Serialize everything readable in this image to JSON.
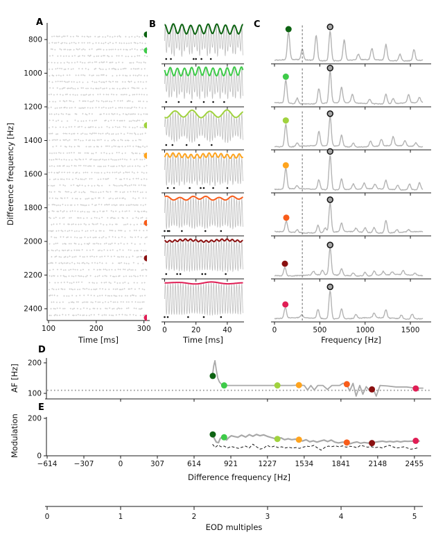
{
  "panels": {
    "a": "A",
    "b": "B",
    "c": "C",
    "d": "D",
    "e": "E"
  },
  "colors": {
    "highlights": [
      "#0d6312",
      "#3ecb49",
      "#a0d23e",
      "#ffa41e",
      "#f85c1a",
      "#8a1010",
      "#e01e55"
    ],
    "gray_line": "#a8a8a8",
    "trace_gray": "#bdbdbd",
    "spectrum_gray": "#b3b3b3",
    "raster_gray": "#c9c9c9",
    "eod_dot_fill": "#a6a6a6",
    "dotted_ref": "#909090",
    "dashed_black": "#151515",
    "axis": "#1a1a1a"
  },
  "chart_data": [
    {
      "id": "A",
      "type": "scatter",
      "xlabel": "Time [ms]",
      "ylabel": "Difference frequency [Hz]",
      "xticks": [
        100,
        200,
        300
      ],
      "yticks": [
        800,
        1000,
        1200,
        1400,
        1600,
        1800,
        2000,
        2200,
        2400
      ],
      "xlim": [
        97,
        312
      ],
      "ylim_inverted": [
        700,
        2470
      ],
      "raster": {
        "row_start": 782,
        "row_step": 38.5,
        "row_count": 44,
        "x_start": 100,
        "x_end": 307
      },
      "highlight_frequencies": [
        770,
        865,
        1310,
        1490,
        1890,
        2100,
        2465
      ]
    },
    {
      "id": "B",
      "type": "line",
      "xlabel": "Time [ms]",
      "xticks": [
        0,
        20,
        40
      ],
      "xlim": [
        0,
        50
      ],
      "carrier_hz": 614,
      "rows": [
        {
          "df": 770,
          "envelope_hz": 180,
          "depth": 0.3,
          "spikes": [
            1,
            4,
            18.5,
            20,
            23.5,
            29.5
          ]
        },
        {
          "df": 865,
          "envelope_hz": 220,
          "depth": 0.26,
          "spikes": [
            1,
            9,
            17,
            25,
            31,
            38
          ]
        },
        {
          "df": 1310,
          "envelope_hz": 90,
          "depth": 0.22,
          "spikes": [
            1,
            5,
            14,
            22,
            30
          ]
        },
        {
          "df": 1490,
          "envelope_hz": 260,
          "depth": 0.13,
          "spikes": [
            2,
            6,
            16,
            23,
            25,
            31,
            40
          ]
        },
        {
          "df": 1890,
          "envelope_hz": 120,
          "depth": 0.1,
          "spikes": [
            0,
            2,
            3,
            11,
            26,
            36
          ]
        },
        {
          "df": 2100,
          "envelope_hz": 300,
          "depth": 0.06,
          "spikes": [
            1,
            8,
            10,
            24,
            26,
            39
          ]
        },
        {
          "df": 2465,
          "envelope_hz": 60,
          "depth": 0.02,
          "spikes": [
            0,
            2,
            15,
            25,
            36
          ]
        }
      ]
    },
    {
      "id": "C",
      "type": "line",
      "xlabel": "Frequency [Hz]",
      "xticks": [
        0,
        500,
        1000,
        1500
      ],
      "xlim": [
        0,
        1640
      ],
      "dashed_vline_hz": 307,
      "eod_peak_hz": 614,
      "rows": [
        {
          "af_hz": 155,
          "peaks": [
            [
              155,
              0.74
            ],
            [
              307,
              0.28
            ],
            [
              460,
              0.68
            ],
            [
              614,
              0.8
            ],
            [
              770,
              0.55
            ],
            [
              925,
              0.15
            ],
            [
              1075,
              0.3
            ],
            [
              1230,
              0.42
            ],
            [
              1385,
              0.18
            ],
            [
              1540,
              0.3
            ]
          ]
        },
        {
          "af_hz": 125,
          "peaks": [
            [
              125,
              0.62
            ],
            [
              250,
              0.15
            ],
            [
              490,
              0.4
            ],
            [
              614,
              0.85
            ],
            [
              740,
              0.42
            ],
            [
              860,
              0.22
            ],
            [
              1050,
              0.12
            ],
            [
              1230,
              0.26
            ],
            [
              1310,
              0.14
            ],
            [
              1480,
              0.22
            ],
            [
              1600,
              0.14
            ]
          ]
        },
        {
          "af_hz": 125,
          "peaks": [
            [
              125,
              0.6
            ],
            [
              250,
              0.1
            ],
            [
              490,
              0.38
            ],
            [
              614,
              0.78
            ],
            [
              740,
              0.3
            ],
            [
              870,
              0.1
            ],
            [
              1060,
              0.14
            ],
            [
              1180,
              0.18
            ],
            [
              1310,
              0.24
            ],
            [
              1440,
              0.14
            ],
            [
              1560,
              0.1
            ]
          ]
        },
        {
          "af_hz": 125,
          "peaks": [
            [
              125,
              0.55
            ],
            [
              250,
              0.08
            ],
            [
              490,
              0.26
            ],
            [
              614,
              0.92
            ],
            [
              740,
              0.3
            ],
            [
              870,
              0.14
            ],
            [
              990,
              0.15
            ],
            [
              1110,
              0.12
            ],
            [
              1230,
              0.24
            ],
            [
              1360,
              0.12
            ],
            [
              1490,
              0.16
            ],
            [
              1600,
              0.18
            ]
          ]
        },
        {
          "af_hz": 130,
          "peaks": [
            [
              130,
              0.3
            ],
            [
              250,
              0.08
            ],
            [
              480,
              0.2
            ],
            [
              560,
              0.12
            ],
            [
              614,
              0.78
            ],
            [
              740,
              0.24
            ],
            [
              900,
              0.1
            ],
            [
              1000,
              0.12
            ],
            [
              1100,
              0.14
            ],
            [
              1230,
              0.34
            ],
            [
              1350,
              0.08
            ],
            [
              1480,
              0.06
            ]
          ]
        },
        {
          "af_hz": 115,
          "peaks": [
            [
              115,
              0.22
            ],
            [
              430,
              0.1
            ],
            [
              530,
              0.12
            ],
            [
              614,
              0.72
            ],
            [
              740,
              0.18
            ],
            [
              870,
              0.08
            ],
            [
              1000,
              0.1
            ],
            [
              1100,
              0.12
            ],
            [
              1200,
              0.1
            ],
            [
              1300,
              0.08
            ],
            [
              1420,
              0.12
            ],
            [
              1550,
              0.06
            ]
          ]
        },
        {
          "af_hz": 120,
          "peaks": [
            [
              120,
              0.28
            ],
            [
              300,
              0.08
            ],
            [
              480,
              0.24
            ],
            [
              614,
              0.75
            ],
            [
              740,
              0.28
            ],
            [
              900,
              0.1
            ],
            [
              1100,
              0.12
            ],
            [
              1230,
              0.22
            ],
            [
              1400,
              0.1
            ],
            [
              1520,
              0.13
            ]
          ]
        }
      ]
    },
    {
      "id": "D",
      "type": "line",
      "ylabel": "AF [Hz]",
      "yticks": [
        100,
        200
      ],
      "xticks": [
        0,
        614,
        1227,
        1841,
        2455
      ],
      "xlim": [
        -614,
        2590
      ],
      "ylim": [
        85,
        215
      ],
      "dotted_hline": 110,
      "line": [
        [
          768,
          160
        ],
        [
          778,
          190
        ],
        [
          788,
          207
        ],
        [
          800,
          176
        ],
        [
          812,
          150
        ],
        [
          826,
          137
        ],
        [
          845,
          129
        ],
        [
          865,
          126
        ],
        [
          1000,
          126
        ],
        [
          1150,
          126
        ],
        [
          1310,
          126
        ],
        [
          1430,
          126
        ],
        [
          1490,
          127
        ],
        [
          1535,
          126
        ],
        [
          1562,
          111
        ],
        [
          1590,
          126
        ],
        [
          1618,
          111
        ],
        [
          1648,
          126
        ],
        [
          1690,
          126
        ],
        [
          1728,
          113
        ],
        [
          1766,
          126
        ],
        [
          1830,
          126
        ],
        [
          1858,
          133
        ],
        [
          1888,
          130
        ],
        [
          1914,
          108
        ],
        [
          1942,
          133
        ],
        [
          1968,
          91
        ],
        [
          1998,
          126
        ],
        [
          2024,
          97
        ],
        [
          2052,
          122
        ],
        [
          2082,
          108
        ],
        [
          2106,
          119
        ],
        [
          2136,
          91
        ],
        [
          2168,
          126
        ],
        [
          2230,
          124
        ],
        [
          2300,
          121
        ],
        [
          2390,
          121
        ],
        [
          2466,
          117
        ],
        [
          2530,
          117
        ]
      ],
      "dots": [
        [
          770,
          157
        ],
        [
          865,
          126
        ],
        [
          1310,
          126
        ],
        [
          1490,
          127
        ],
        [
          1890,
          130
        ],
        [
          2100,
          113
        ],
        [
          2466,
          116
        ]
      ]
    },
    {
      "id": "E",
      "type": "line",
      "ylabel": "Modulation",
      "xlabel": "Difference frequency [Hz]",
      "yticks": [
        0,
        200
      ],
      "ylim": [
        0,
        230
      ],
      "xtick_values": [
        -614,
        -307,
        0,
        307,
        614,
        921,
        1227,
        1534,
        1841,
        2148,
        2455
      ],
      "xtick_labels": [
        "−614",
        "−307",
        "0",
        "307",
        "614",
        "921",
        "1227",
        "1534",
        "1841",
        "2148",
        "2455"
      ],
      "solid_line": [
        [
          768,
          114
        ],
        [
          785,
          90
        ],
        [
          800,
          73
        ],
        [
          818,
          70
        ],
        [
          832,
          92
        ],
        [
          848,
          101
        ],
        [
          865,
          99
        ],
        [
          885,
          84
        ],
        [
          905,
          98
        ],
        [
          925,
          107
        ],
        [
          950,
          103
        ],
        [
          980,
          99
        ],
        [
          1010,
          110
        ],
        [
          1045,
          100
        ],
        [
          1075,
          113
        ],
        [
          1105,
          104
        ],
        [
          1135,
          114
        ],
        [
          1165,
          107
        ],
        [
          1195,
          112
        ],
        [
          1225,
          104
        ],
        [
          1255,
          98
        ],
        [
          1285,
          93
        ],
        [
          1310,
          90
        ],
        [
          1340,
          96
        ],
        [
          1370,
          86
        ],
        [
          1400,
          91
        ],
        [
          1430,
          86
        ],
        [
          1460,
          89
        ],
        [
          1490,
          86
        ],
        [
          1520,
          79
        ],
        [
          1550,
          86
        ],
        [
          1580,
          75
        ],
        [
          1610,
          80
        ],
        [
          1640,
          73
        ],
        [
          1670,
          79
        ],
        [
          1700,
          84
        ],
        [
          1730,
          76
        ],
        [
          1760,
          84
        ],
        [
          1790,
          73
        ],
        [
          1820,
          69
        ],
        [
          1855,
          73
        ],
        [
          1890,
          71
        ],
        [
          1915,
          64
        ],
        [
          1945,
          70
        ],
        [
          1975,
          74
        ],
        [
          2005,
          67
        ],
        [
          2035,
          71
        ],
        [
          2065,
          68
        ],
        [
          2100,
          68
        ],
        [
          2130,
          73
        ],
        [
          2160,
          76
        ],
        [
          2190,
          78
        ],
        [
          2220,
          74
        ],
        [
          2250,
          77
        ],
        [
          2280,
          74
        ],
        [
          2310,
          78
        ],
        [
          2340,
          74
        ],
        [
          2370,
          78
        ],
        [
          2400,
          77
        ],
        [
          2435,
          78
        ],
        [
          2466,
          80
        ],
        [
          2500,
          78
        ]
      ],
      "dashed_line": [
        [
          768,
          62
        ],
        [
          790,
          45
        ],
        [
          815,
          57
        ],
        [
          840,
          48
        ],
        [
          865,
          52
        ],
        [
          895,
          42
        ],
        [
          925,
          50
        ],
        [
          955,
          44
        ],
        [
          985,
          40
        ],
        [
          1015,
          46
        ],
        [
          1045,
          52
        ],
        [
          1075,
          42
        ],
        [
          1105,
          62
        ],
        [
          1135,
          48
        ],
        [
          1165,
          36
        ],
        [
          1195,
          40
        ],
        [
          1225,
          56
        ],
        [
          1255,
          46
        ],
        [
          1285,
          52
        ],
        [
          1315,
          44
        ],
        [
          1345,
          48
        ],
        [
          1375,
          42
        ],
        [
          1405,
          46
        ],
        [
          1435,
          41
        ],
        [
          1465,
          44
        ],
        [
          1495,
          40
        ],
        [
          1525,
          46
        ],
        [
          1555,
          52
        ],
        [
          1585,
          49
        ],
        [
          1615,
          56
        ],
        [
          1645,
          42
        ],
        [
          1675,
          30
        ],
        [
          1705,
          44
        ],
        [
          1735,
          52
        ],
        [
          1765,
          49
        ],
        [
          1795,
          53
        ],
        [
          1825,
          48
        ],
        [
          1855,
          53
        ],
        [
          1885,
          46
        ],
        [
          1915,
          51
        ],
        [
          1945,
          49
        ],
        [
          1975,
          43
        ],
        [
          2005,
          56
        ],
        [
          2035,
          51
        ],
        [
          2065,
          46
        ],
        [
          2095,
          49
        ],
        [
          2125,
          43
        ],
        [
          2155,
          47
        ],
        [
          2185,
          42
        ],
        [
          2215,
          50
        ],
        [
          2245,
          56
        ],
        [
          2275,
          48
        ],
        [
          2305,
          41
        ],
        [
          2335,
          44
        ],
        [
          2365,
          48
        ],
        [
          2395,
          42
        ],
        [
          2425,
          35
        ],
        [
          2455,
          38
        ],
        [
          2490,
          44
        ]
      ],
      "dots": [
        [
          770,
          114
        ],
        [
          865,
          99
        ],
        [
          1310,
          90
        ],
        [
          1490,
          86
        ],
        [
          1890,
          71
        ],
        [
          2100,
          68
        ],
        [
          2466,
          80
        ]
      ]
    },
    {
      "id": "EOD_axis",
      "type": "axis",
      "xlabel": "EOD multiples",
      "xticks": [
        0,
        1,
        2,
        3,
        4,
        5
      ]
    }
  ]
}
